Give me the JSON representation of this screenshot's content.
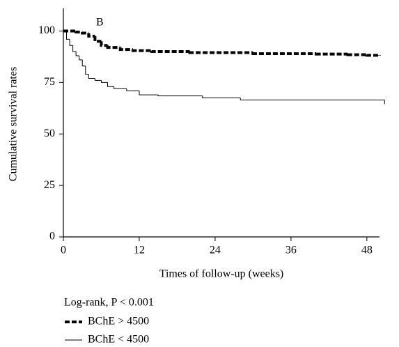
{
  "chart_data": {
    "type": "step",
    "annotation": "B",
    "y_label": "Cumulative survival rates",
    "x_label": "Times of follow-up (weeks)",
    "legend_title": "Log-rank, P < 0.001",
    "xlim": [
      0,
      50
    ],
    "xticks": [
      0,
      12,
      24,
      36,
      48
    ],
    "ylim": [
      0,
      111
    ],
    "yticks": [
      0,
      25,
      50,
      75,
      100
    ],
    "series": [
      {
        "name": "BChE > 4500",
        "color": "#000000",
        "dash": true,
        "x": [
          0,
          2,
          3,
          4,
          5,
          6,
          7,
          9,
          11,
          14,
          20,
          30,
          40,
          45,
          48,
          50
        ],
        "values": [
          100,
          99.5,
          99,
          97.5,
          95,
          93,
          92,
          91,
          90.5,
          90,
          89.5,
          89,
          88.8,
          88.5,
          88.2,
          88
        ]
      },
      {
        "name": "BChE < 4500",
        "color": "#000000",
        "dash": false,
        "x": [
          0,
          0.5,
          1,
          1.5,
          2,
          2.5,
          3,
          3.5,
          4,
          5,
          6,
          7,
          8,
          10,
          12,
          15,
          22,
          28,
          50.8
        ],
        "values": [
          100,
          96,
          93,
          90,
          88,
          86,
          83,
          79,
          77,
          76,
          75,
          73,
          72,
          71,
          69,
          68.5,
          67.5,
          66.5,
          64.5
        ]
      }
    ]
  }
}
